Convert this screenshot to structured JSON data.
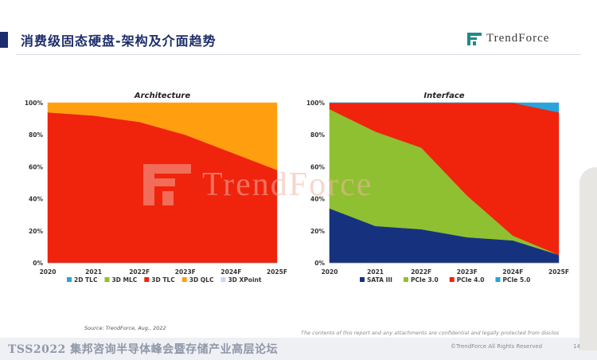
{
  "slide": {
    "title": "消费级固态硬盘-架构及介面趋势",
    "logo_text": "TrendForce",
    "watermark_text": "TrendForce",
    "source": "Source: TrendForce, Aug., 2022",
    "disclaimer": "The contents of this report and any attachments are confidential and legally protected from disclos",
    "footer_event": "TSS2022 集邦咨询半导体峰会暨存储产业高层论坛",
    "footer_copyright": "©TrendForce All Rights Reserved",
    "page_number": "14"
  },
  "chart_data": [
    {
      "type": "area",
      "stacked": true,
      "title": "Architecture",
      "categories": [
        "2020",
        "2021",
        "2022F",
        "2023F",
        "2024F",
        "2025F"
      ],
      "y_ticks": [
        "0%",
        "20%",
        "40%",
        "60%",
        "80%",
        "100%"
      ],
      "ylim": [
        0,
        100
      ],
      "legend_position": "bottom",
      "series": [
        {
          "name": "2D TLC",
          "color": "#29a3dc",
          "values": [
            0,
            0,
            0,
            0,
            0,
            0
          ]
        },
        {
          "name": "3D MLC",
          "color": "#8fc031",
          "values": [
            0,
            0,
            0,
            0,
            0,
            0
          ]
        },
        {
          "name": "3D TLC",
          "color": "#f0230c",
          "values": [
            94,
            92,
            88,
            80,
            69,
            58
          ]
        },
        {
          "name": "3D QLC",
          "color": "#ff9f0f",
          "values": [
            6,
            8,
            12,
            20,
            31,
            42
          ]
        },
        {
          "name": "3D XPoint",
          "color": "#c7d9f1",
          "values": [
            0,
            0,
            0,
            0,
            0,
            0
          ]
        }
      ]
    },
    {
      "type": "area",
      "stacked": true,
      "title": "Interface",
      "categories": [
        "2020",
        "2021",
        "2022F",
        "2023F",
        "2024F",
        "2025F"
      ],
      "y_ticks": [
        "0%",
        "20%",
        "40%",
        "60%",
        "80%",
        "100%"
      ],
      "ylim": [
        0,
        100
      ],
      "legend_position": "bottom",
      "series": [
        {
          "name": "SATA III",
          "color": "#16327e",
          "values": [
            34,
            23,
            21,
            16,
            14,
            5
          ]
        },
        {
          "name": "PCIe 3.0",
          "color": "#8fc031",
          "values": [
            62,
            59,
            51,
            26,
            3,
            0
          ]
        },
        {
          "name": "PCIe 4.0",
          "color": "#f0230c",
          "values": [
            4,
            18,
            28,
            58,
            83,
            89
          ]
        },
        {
          "name": "PCIe 5.0",
          "color": "#29a3dc",
          "values": [
            0,
            0,
            0,
            0,
            0,
            6
          ]
        }
      ]
    }
  ]
}
